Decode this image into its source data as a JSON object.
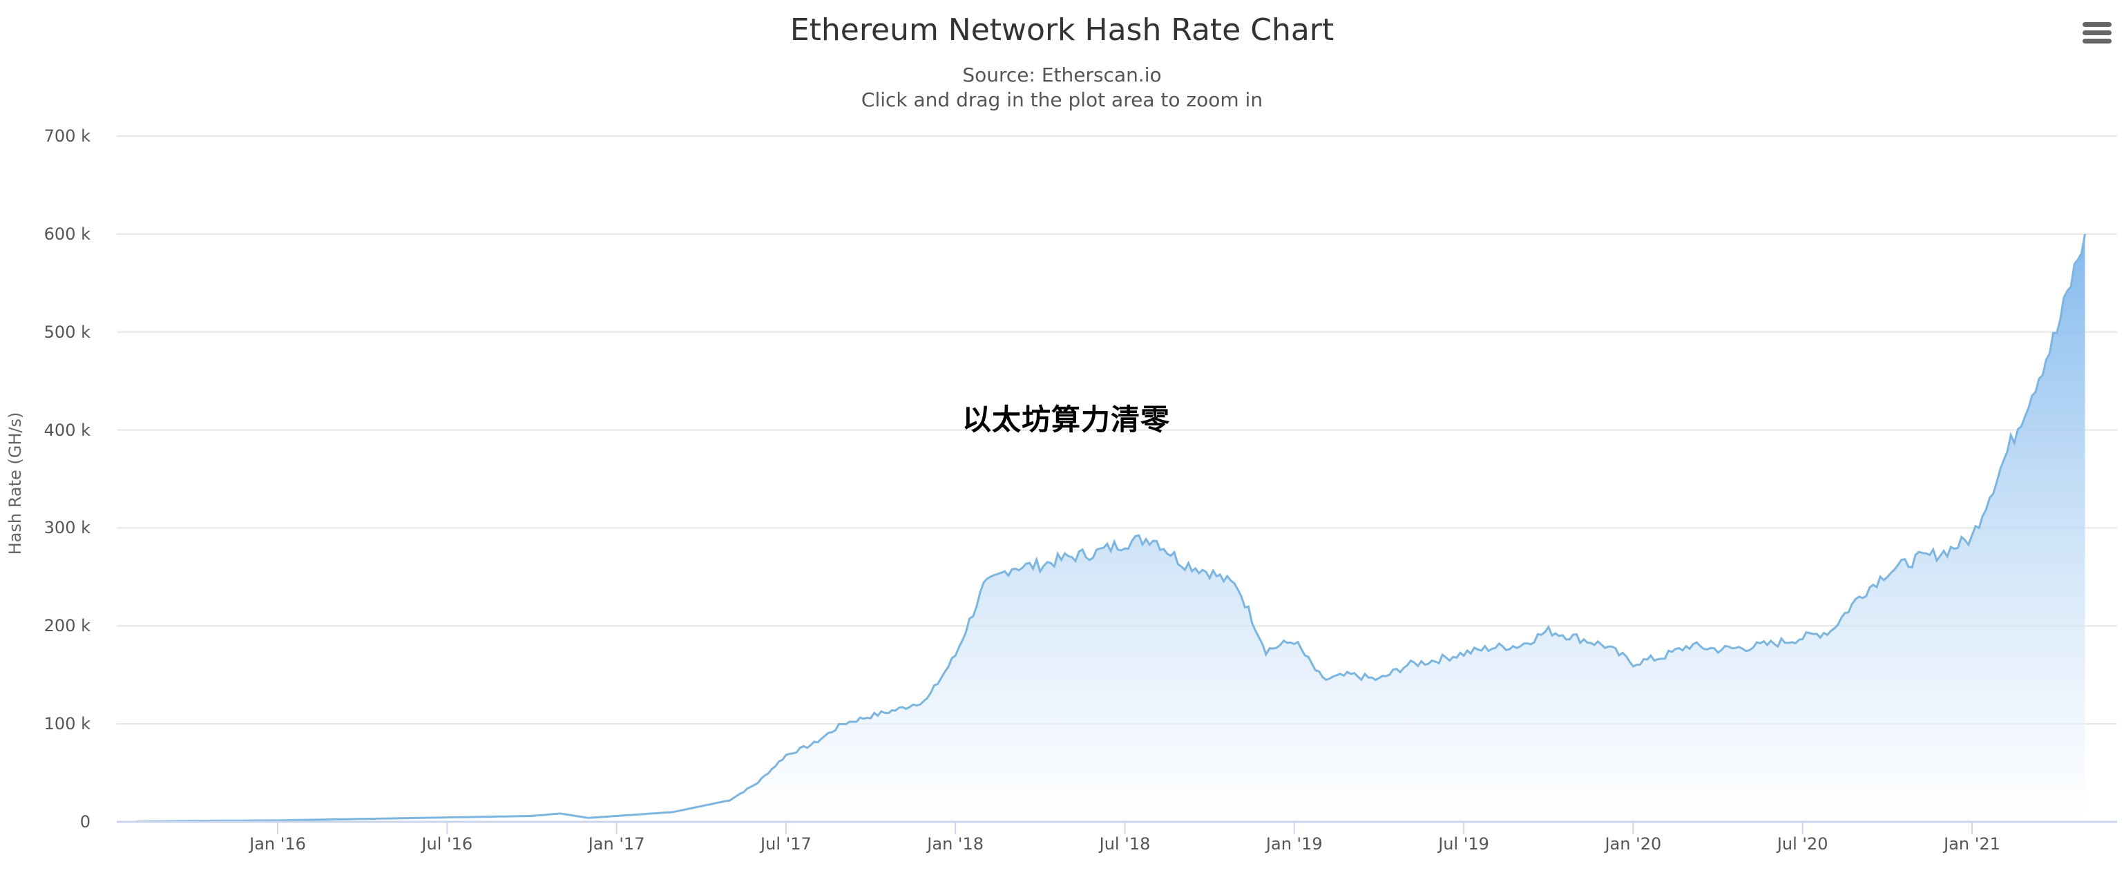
{
  "header": {
    "title": "Ethereum Network Hash Rate Chart",
    "subtitle_source": "Source: Etherscan.io",
    "subtitle_hint": "Click and drag in the plot area to zoom in",
    "menu_icon": "hamburger-menu-icon"
  },
  "overlay_text": "以太坊算力清零",
  "axes": {
    "y_title": "Hash Rate (GH/s)",
    "y_ticks": [
      "0",
      "100 k",
      "200 k",
      "300 k",
      "400 k",
      "500 k",
      "600 k",
      "700 k"
    ],
    "x_ticks": [
      "Jan '16",
      "Jul '16",
      "Jan '17",
      "Jul '17",
      "Jan '18",
      "Jul '18",
      "Jan '19",
      "Jul '19",
      "Jan '20",
      "Jul '20",
      "Jan '21"
    ]
  },
  "colors": {
    "line": "#7cb5e0",
    "fill_top": "#7cb5ec",
    "fill_bottom": "#ffffff",
    "grid": "#e6e6e6",
    "axis": "#ccd6eb"
  },
  "chart_data": {
    "type": "area",
    "title": "Ethereum Network Hash Rate Chart",
    "subtitle": "Source: Etherscan.io",
    "xlabel": "",
    "ylabel": "Hash Rate (GH/s)",
    "ylim": [
      0,
      700000
    ],
    "grid": true,
    "legend": "none",
    "annotation": "以太坊算力清零",
    "x": [
      "2015-08",
      "2015-10",
      "2016-01",
      "2016-04",
      "2016-07",
      "2016-10",
      "2016-11",
      "2016-12",
      "2017-01",
      "2017-03",
      "2017-05",
      "2017-06",
      "2017-07",
      "2017-08",
      "2017-09",
      "2017-10",
      "2017-11",
      "2017-12",
      "2018-01",
      "2018-02",
      "2018-03",
      "2018-04",
      "2018-05",
      "2018-06",
      "2018-07",
      "2018-08",
      "2018-09",
      "2018-10",
      "2018-11",
      "2018-12",
      "2019-01",
      "2019-02",
      "2019-03",
      "2019-04",
      "2019-05",
      "2019-06",
      "2019-07",
      "2019-08",
      "2019-09",
      "2019-10",
      "2019-11",
      "2019-12",
      "2020-01",
      "2020-02",
      "2020-03",
      "2020-04",
      "2020-05",
      "2020-06",
      "2020-07",
      "2020-08",
      "2020-09",
      "2020-10",
      "2020-11",
      "2020-12",
      "2021-01",
      "2021-02",
      "2021-03",
      "2021-04",
      "2021-05"
    ],
    "series": [
      {
        "name": "Hash Rate (GH/s)",
        "values": [
          300,
          1000,
          1500,
          3000,
          4500,
          6000,
          8500,
          4000,
          6000,
          10000,
          22000,
          40000,
          68000,
          80000,
          100000,
          108000,
          115000,
          125000,
          170000,
          240000,
          260000,
          262000,
          270000,
          275000,
          285000,
          290000,
          265000,
          255000,
          240000,
          175000,
          185000,
          145000,
          150000,
          145000,
          160000,
          165000,
          172000,
          178000,
          180000,
          195000,
          188000,
          180000,
          162000,
          168000,
          180000,
          176000,
          178000,
          182000,
          188000,
          195000,
          230000,
          255000,
          268000,
          275000,
          290000,
          360000,
          430000,
          500000,
          600000
        ]
      }
    ]
  }
}
